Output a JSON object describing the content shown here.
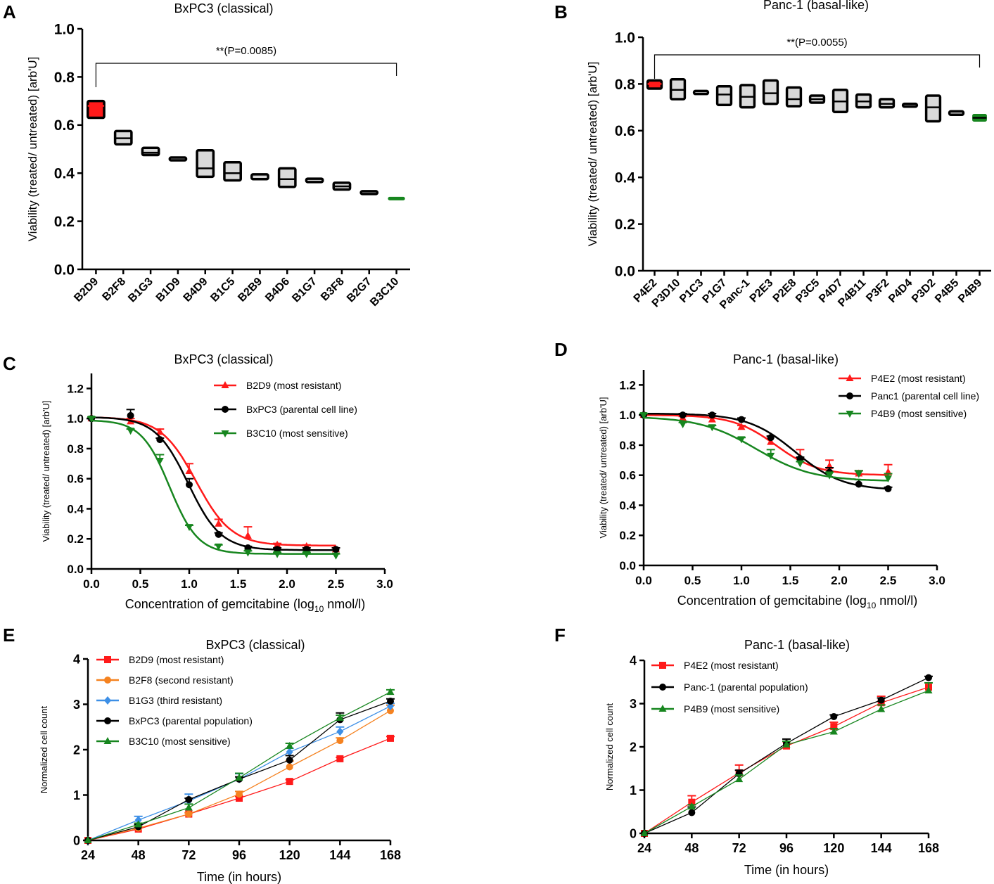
{
  "colors": {
    "red": "#ff1a1a",
    "black": "#000000",
    "green": "#17861f",
    "orange": "#f58220",
    "blue": "#3d8fe6",
    "box_fill": "#d9d9d9",
    "box_outline": "#000000"
  },
  "chart_data": [
    {
      "panel": "A",
      "type": "box",
      "title": "BxPC3 (classical)",
      "ylabel": "Viability (treated/ untreated) [arb'U]",
      "ylim": [
        0,
        1.0
      ],
      "yticks": [
        "0.0",
        "0.2",
        "0.4",
        "0.6",
        "0.8",
        "1.0"
      ],
      "significance": "**(P=0.0085)",
      "categories": [
        "B2D9",
        "B2F8",
        "B1G3",
        "B1D9",
        "B4D9",
        "B1C5",
        "B2B9",
        "B4D6",
        "B1G7",
        "B3F8",
        "B2G7",
        "B3C10"
      ],
      "min": [
        0.63,
        0.52,
        0.475,
        0.457,
        0.385,
        0.37,
        0.375,
        0.343,
        0.363,
        0.332,
        0.317,
        0.29
      ],
      "median": [
        0.68,
        0.545,
        0.485,
        0.46,
        0.42,
        0.4,
        0.385,
        0.375,
        0.37,
        0.345,
        0.32,
        0.295
      ],
      "max": [
        0.7,
        0.575,
        0.505,
        0.465,
        0.495,
        0.445,
        0.395,
        0.42,
        0.377,
        0.36,
        0.325,
        0.3
      ],
      "fill": [
        "red",
        "box",
        "box",
        "box",
        "box",
        "box",
        "box",
        "box",
        "box",
        "box",
        "box",
        "green"
      ]
    },
    {
      "panel": "B",
      "type": "box",
      "title": "Panc-1 (basal-like)",
      "ylabel": "Viability (treated/ untreated) [arb'U]",
      "ylim": [
        0,
        1.0
      ],
      "yticks": [
        "0.0",
        "0.2",
        "0.4",
        "0.6",
        "0.8",
        "1.0"
      ],
      "significance": "**(P=0.0055)",
      "categories": [
        "P4E2",
        "P3D10",
        "P1C3",
        "P1G7",
        "Panc-1",
        "P2E3",
        "P2E8",
        "P3C5",
        "P4D7",
        "P4B11",
        "P3F2",
        "P4D4",
        "P3D2",
        "P4B5",
        "P4B9"
      ],
      "min": [
        0.78,
        0.735,
        0.757,
        0.71,
        0.7,
        0.715,
        0.705,
        0.72,
        0.68,
        0.7,
        0.7,
        0.705,
        0.64,
        0.668,
        0.64
      ],
      "median": [
        0.8,
        0.775,
        0.763,
        0.755,
        0.745,
        0.76,
        0.735,
        0.735,
        0.725,
        0.725,
        0.715,
        0.71,
        0.7,
        0.675,
        0.655
      ],
      "max": [
        0.815,
        0.82,
        0.77,
        0.79,
        0.795,
        0.815,
        0.785,
        0.75,
        0.775,
        0.755,
        0.735,
        0.715,
        0.75,
        0.683,
        0.67
      ],
      "fill": [
        "red",
        "box",
        "box",
        "box",
        "box",
        "box",
        "box",
        "box",
        "box",
        "box",
        "box",
        "box",
        "box",
        "box",
        "green"
      ]
    },
    {
      "panel": "C",
      "type": "line",
      "title": "BxPC3 (classical)",
      "xlabel": "Concentration of gemcitabine (log",
      "xlabel_sub": "10",
      "xlabel_tail": " nmol/l)",
      "ylabel": "Viability (treated/ untreated) [arb'U]",
      "xlim": [
        0,
        3.0
      ],
      "ylim": [
        0,
        1.3
      ],
      "xticks": [
        "0.0",
        "0.5",
        "1.0",
        "1.5",
        "2.0",
        "2.5",
        "3.0"
      ],
      "yticks": [
        "0.0",
        "0.2",
        "0.4",
        "0.6",
        "0.8",
        "1.0",
        "1.2"
      ],
      "x": [
        0,
        0.4,
        0.7,
        1.0,
        1.3,
        1.6,
        1.9,
        2.2,
        2.5
      ],
      "series": [
        {
          "name": "B2D9 (most resistant)",
          "color": "red",
          "marker": "triangle-up",
          "values": [
            1.0,
            0.98,
            0.91,
            0.65,
            0.3,
            0.22,
            0.16,
            0.15,
            0.13
          ],
          "errors": [
            0.01,
            0.02,
            0.02,
            0.05,
            0.03,
            0.06,
            0.01,
            0.01,
            0.01
          ],
          "fit": {
            "top": 1.01,
            "bottom": 0.155,
            "ec50": 1.07,
            "slope": 2.4
          }
        },
        {
          "name": "BxPC3 (parental cell line)",
          "color": "black",
          "marker": "circle",
          "values": [
            1.0,
            1.02,
            0.86,
            0.56,
            0.23,
            0.14,
            0.13,
            0.13,
            0.13
          ],
          "errors": [
            0.01,
            0.04,
            0.01,
            0.04,
            0.01,
            0.01,
            0.01,
            0.01,
            0.01
          ],
          "fit": {
            "top": 1.01,
            "bottom": 0.125,
            "ec50": 0.99,
            "slope": 2.6
          }
        },
        {
          "name": "B3C10 (most sensitive)",
          "color": "green",
          "marker": "triangle-down",
          "values": [
            1.0,
            0.92,
            0.72,
            0.28,
            0.15,
            0.11,
            0.1,
            0.1,
            0.09
          ],
          "errors": [
            0.01,
            0.01,
            0.04,
            0.01,
            0.01,
            0.01,
            0.01,
            0.01,
            0.01
          ],
          "fit": {
            "top": 0.99,
            "bottom": 0.1,
            "ec50": 0.8,
            "slope": 3.0
          }
        }
      ]
    },
    {
      "panel": "D",
      "type": "line",
      "title": "Panc-1 (basal-like)",
      "xlabel": "Concentration of gemcitabine (log",
      "xlabel_sub": "10",
      "xlabel_tail": " nmol/l)",
      "ylabel": "Viability (treated/ untreated) [arb'U]",
      "xlim": [
        0,
        3.0
      ],
      "ylim": [
        0,
        1.3
      ],
      "xticks": [
        "0.0",
        "0.5",
        "1.0",
        "1.5",
        "2.0",
        "2.5",
        "3.0"
      ],
      "yticks": [
        "0.0",
        "0.2",
        "0.4",
        "0.6",
        "0.8",
        "1.0",
        "1.2"
      ],
      "x": [
        0,
        0.4,
        0.7,
        1.0,
        1.3,
        1.6,
        1.9,
        2.2,
        2.5
      ],
      "series": [
        {
          "name": "P4E2 (most resistant)",
          "color": "red",
          "marker": "triangle-up",
          "values": [
            1.0,
            0.98,
            0.97,
            0.92,
            0.82,
            0.72,
            0.66,
            0.61,
            0.62
          ],
          "errors": [
            0.01,
            0.01,
            0.01,
            0.01,
            0.04,
            0.05,
            0.04,
            0.02,
            0.05
          ],
          "fit": {
            "top": 1.0,
            "bottom": 0.6,
            "ec50": 1.35,
            "slope": 2.0
          }
        },
        {
          "name": "Panc1 (parental cell line)",
          "color": "black",
          "marker": "circle",
          "values": [
            1.0,
            1.0,
            1.0,
            0.97,
            0.85,
            0.71,
            0.62,
            0.54,
            0.51
          ],
          "errors": [
            0.01,
            0.01,
            0.01,
            0.01,
            0.01,
            0.01,
            0.03,
            0.03,
            0.01
          ],
          "fit": {
            "top": 1.01,
            "bottom": 0.5,
            "ec50": 1.55,
            "slope": 1.8
          }
        },
        {
          "name": "P4B9 (most sensitive)",
          "color": "green",
          "marker": "triangle-down",
          "values": [
            1.0,
            0.94,
            0.92,
            0.84,
            0.73,
            0.68,
            0.6,
            0.61,
            0.58
          ],
          "errors": [
            0.01,
            0.01,
            0.01,
            0.01,
            0.04,
            0.01,
            0.02,
            0.02,
            0.03
          ],
          "fit": {
            "top": 0.99,
            "bottom": 0.56,
            "ec50": 1.15,
            "slope": 1.5
          }
        }
      ]
    },
    {
      "panel": "E",
      "type": "line",
      "title": "BxPC3 (classical)",
      "xlabel": "Time (in hours)",
      "ylabel": "Normalized cell count",
      "xlim": [
        24,
        168
      ],
      "ylim": [
        0,
        4
      ],
      "xticks": [
        "24",
        "48",
        "72",
        "96",
        "120",
        "144",
        "168"
      ],
      "yticks": [
        "0",
        "1",
        "2",
        "3",
        "4"
      ],
      "x": [
        24,
        48,
        72,
        96,
        120,
        144,
        168
      ],
      "series": [
        {
          "name": "B2D9 (most resistant)",
          "color": "red",
          "marker": "square",
          "values": [
            0,
            0.25,
            0.58,
            0.93,
            1.3,
            1.8,
            2.25
          ],
          "errors": [
            0,
            0.03,
            0.03,
            0.04,
            0.04,
            0.03,
            0.04
          ]
        },
        {
          "name": "B2F8 (second resistant)",
          "color": "orange",
          "marker": "circle",
          "values": [
            0,
            0.27,
            0.58,
            1.02,
            1.62,
            2.2,
            2.86
          ],
          "errors": [
            0,
            0.03,
            0.03,
            0.06,
            0.13,
            0.06,
            0.12
          ]
        },
        {
          "name": "B1G3 (third resistant)",
          "color": "blue",
          "marker": "diamond",
          "values": [
            0,
            0.45,
            0.87,
            1.35,
            1.95,
            2.4,
            2.96
          ],
          "errors": [
            0,
            0.08,
            0.15,
            0.12,
            0.08,
            0.1,
            0.06
          ]
        },
        {
          "name": "BxPC3 (parental population)",
          "color": "black",
          "marker": "circle",
          "values": [
            0,
            0.3,
            0.9,
            1.35,
            1.77,
            2.66,
            3.07
          ],
          "errors": [
            0,
            0.05,
            0.03,
            0.05,
            0.1,
            0.15,
            0.05
          ]
        },
        {
          "name": "B3C10 (most sensitive)",
          "color": "green",
          "marker": "triangle-up",
          "values": [
            0,
            0.35,
            0.72,
            1.38,
            2.08,
            2.7,
            3.27
          ],
          "errors": [
            0,
            0.03,
            0.08,
            0.1,
            0.06,
            0.06,
            0.05
          ]
        }
      ]
    },
    {
      "panel": "F",
      "type": "line",
      "title": "Panc-1 (basal-like)",
      "xlabel": "Time (in hours)",
      "ylabel": "Normalized cell count",
      "xlim": [
        24,
        168
      ],
      "ylim": [
        0,
        4
      ],
      "xticks": [
        "24",
        "48",
        "72",
        "96",
        "120",
        "144",
        "168"
      ],
      "yticks": [
        "0",
        "1",
        "2",
        "3",
        "4"
      ],
      "x": [
        24,
        48,
        72,
        96,
        120,
        144,
        168
      ],
      "series": [
        {
          "name": "P4E2 (most resistant)",
          "color": "red",
          "marker": "square",
          "values": [
            0,
            0.72,
            1.4,
            2.02,
            2.47,
            3.02,
            3.38
          ],
          "errors": [
            0,
            0.15,
            0.18,
            0.1,
            0.1,
            0.15,
            0.1
          ]
        },
        {
          "name": "Panc-1 (parental population)",
          "color": "black",
          "marker": "circle",
          "values": [
            0,
            0.48,
            1.38,
            2.08,
            2.7,
            3.08,
            3.6
          ],
          "errors": [
            0,
            0.13,
            0.08,
            0.1,
            0.04,
            0.05,
            0.03
          ]
        },
        {
          "name": "P4B9 (most sensitive)",
          "color": "green",
          "marker": "triangle-up",
          "values": [
            0,
            0.62,
            1.25,
            2.05,
            2.35,
            2.87,
            3.3
          ],
          "errors": [
            0,
            0.04,
            0.1,
            0.08,
            0.07,
            0.1,
            0.18
          ]
        }
      ]
    }
  ]
}
